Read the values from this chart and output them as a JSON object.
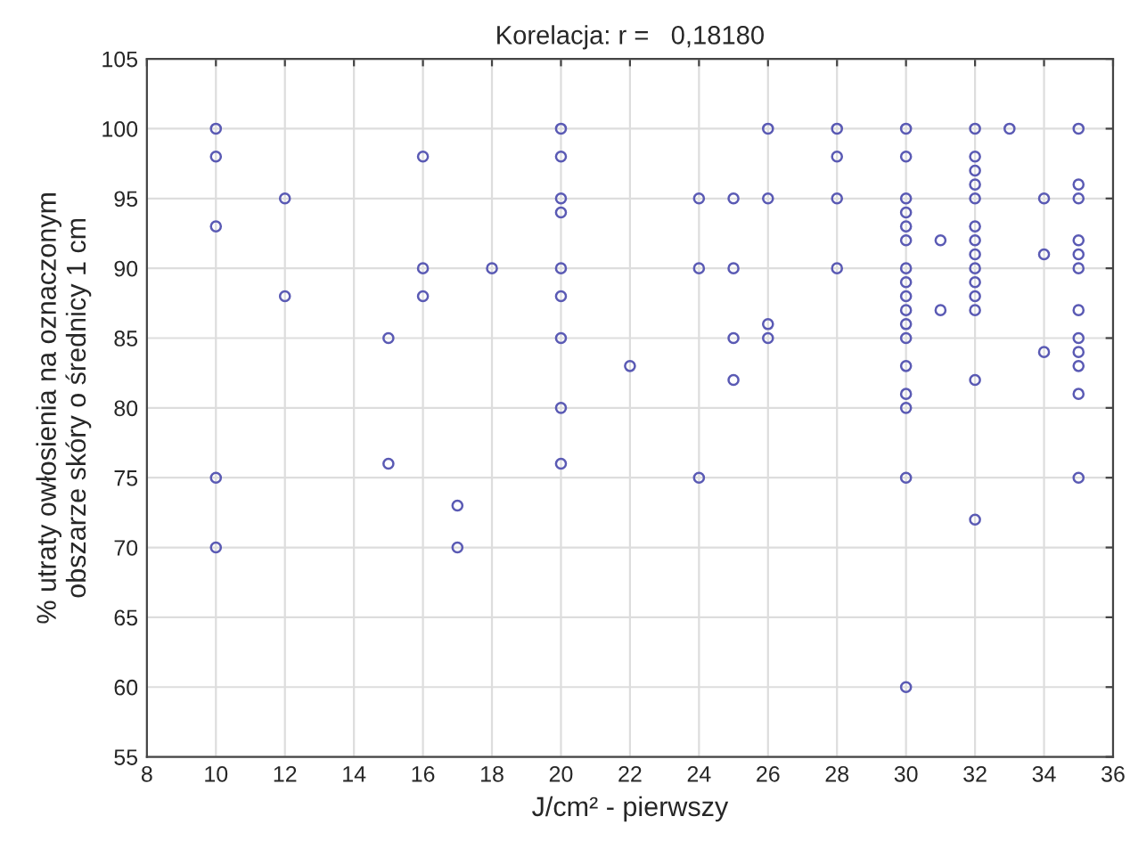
{
  "chart_data": {
    "type": "scatter",
    "title": "Korelacja: r =   0,18180",
    "xlabel": "J/cm² - pierwszy",
    "ylabel": "% utraty owłosienia na oznaczonym\nobszarze skóry o średnicy 1 cm",
    "series": [
      {
        "color": "#5a5ab4",
        "x": [
          10,
          10,
          10,
          10,
          10,
          12,
          12,
          15,
          15,
          16,
          16,
          16,
          17,
          17,
          18,
          20,
          20,
          20,
          20,
          20,
          20,
          20,
          20,
          20,
          22,
          24,
          24,
          24,
          25,
          25,
          25,
          25,
          26,
          26,
          26,
          26,
          28,
          28,
          28,
          28,
          30,
          30,
          30,
          30,
          30,
          30,
          30,
          30,
          30,
          30,
          30,
          30,
          30,
          30,
          30,
          30,
          30,
          31,
          31,
          32,
          32,
          32,
          32,
          32,
          32,
          32,
          32,
          32,
          32,
          32,
          32,
          32,
          32,
          33,
          34,
          34,
          34,
          35,
          35,
          35,
          35,
          35,
          35,
          35,
          35,
          35,
          35,
          35,
          35
        ],
        "values": [
          100,
          98,
          93,
          75,
          70,
          95,
          88,
          85,
          76,
          98,
          90,
          88,
          73,
          70,
          90,
          100,
          98,
          95,
          94,
          90,
          88,
          85,
          80,
          76,
          83,
          95,
          90,
          75,
          95,
          90,
          85,
          82,
          100,
          95,
          86,
          85,
          100,
          98,
          95,
          90,
          100,
          98,
          95,
          94,
          93,
          92,
          90,
          89,
          88,
          87,
          86,
          85,
          83,
          81,
          80,
          75,
          60,
          92,
          87,
          100,
          98,
          97,
          96,
          95,
          93,
          92,
          91,
          90,
          89,
          88,
          87,
          82,
          72,
          100,
          95,
          91,
          84,
          100,
          96,
          95,
          92,
          91,
          90,
          87,
          85,
          84,
          83,
          81,
          75
        ]
      }
    ],
    "xlim": [
      8,
      36
    ],
    "xticks": [
      8,
      10,
      12,
      14,
      16,
      18,
      20,
      22,
      24,
      26,
      28,
      30,
      32,
      34,
      36
    ],
    "ylim": [
      55,
      105
    ],
    "yticks": [
      55,
      60,
      65,
      70,
      75,
      80,
      85,
      90,
      95,
      100,
      105
    ],
    "grid": true,
    "marker": "circle",
    "legend": false
  }
}
